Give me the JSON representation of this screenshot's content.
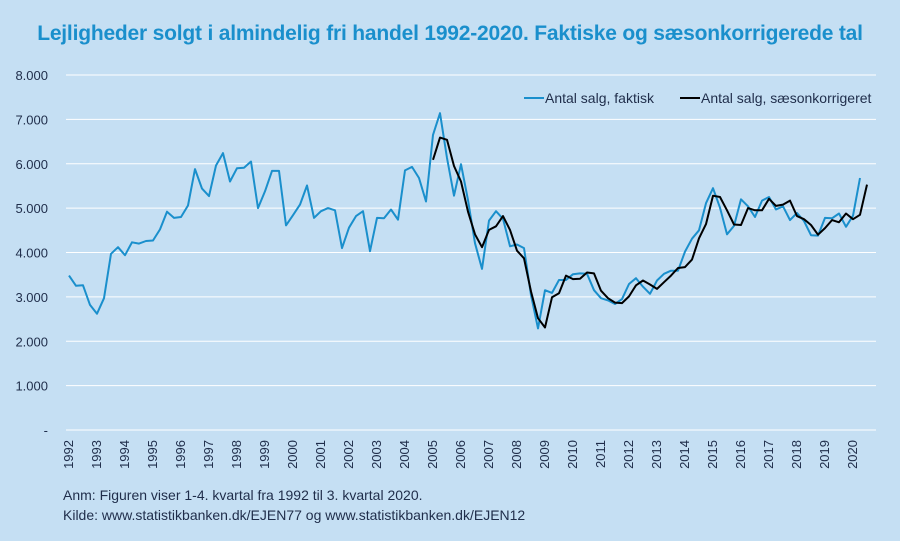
{
  "chart_data": {
    "type": "line",
    "title": "Lejligheder solgt i almindelig fri handel 1992-2020. Faktiske og sæsonkorrigerede tal",
    "xlabel": "",
    "ylabel": "",
    "ylim": [
      0,
      8000
    ],
    "yticks": [
      0,
      1000,
      2000,
      3000,
      4000,
      5000,
      6000,
      7000,
      8000
    ],
    "ytick_labels": [
      "-",
      "1.000",
      "2.000",
      "3.000",
      "4.000",
      "5.000",
      "6.000",
      "7.000",
      "8.000"
    ],
    "xtick_labels": [
      "1992",
      "1993",
      "1994",
      "1995",
      "1996",
      "1997",
      "1998",
      "1999",
      "2000",
      "2001",
      "2002",
      "2003",
      "2004",
      "2005",
      "2006",
      "2007",
      "2008",
      "2009",
      "2010",
      "2011",
      "2012",
      "2013",
      "2014",
      "2015",
      "2016",
      "2017",
      "2018",
      "2019",
      "2020"
    ],
    "x_start": "1992 Q1",
    "x_end": "2020 Q3",
    "grid": true,
    "legend_position": "top-right",
    "colors": {
      "faktisk": "#1a8fcc",
      "saeson": "#000000",
      "grid": "#ffffff",
      "background": "#c5dff3"
    },
    "series": [
      {
        "name": "Antal salg, faktisk",
        "values": [
          3480,
          3250,
          3260,
          2820,
          2620,
          2970,
          3970,
          4120,
          3940,
          4230,
          4200,
          4260,
          4270,
          4520,
          4920,
          4780,
          4800,
          5060,
          5880,
          5440,
          5270,
          5960,
          6240,
          5600,
          5900,
          5910,
          6050,
          5000,
          5380,
          5840,
          5840,
          4610,
          4840,
          5080,
          5510,
          4780,
          4930,
          5000,
          4950,
          4100,
          4560,
          4820,
          4930,
          4030,
          4780,
          4770,
          4970,
          4740,
          5850,
          5930,
          5680,
          5150,
          6650,
          7140,
          6130,
          5280,
          5990,
          5180,
          4210,
          3630,
          4720,
          4930,
          4760,
          4140,
          4180,
          4100,
          3040,
          2290,
          3150,
          3090,
          3380,
          3380,
          3510,
          3530,
          3520,
          3150,
          2970,
          2920,
          2840,
          2950,
          3290,
          3420,
          3230,
          3070,
          3370,
          3520,
          3590,
          3590,
          4020,
          4310,
          4500,
          5110,
          5450,
          5010,
          4410,
          4600,
          5200,
          5040,
          4800,
          5170,
          5250,
          4970,
          5040,
          4730,
          4890,
          4710,
          4390,
          4380,
          4780,
          4770,
          4880,
          4580,
          4830,
          5680
        ]
      },
      {
        "name": "Antal salg, sæsonkorrigeret",
        "start": "2005 Q1",
        "values": [
          6090,
          6590,
          6540,
          5950,
          5600,
          4920,
          4410,
          4120,
          4510,
          4590,
          4820,
          4510,
          4040,
          3870,
          3120,
          2520,
          2310,
          2990,
          3080,
          3480,
          3400,
          3410,
          3550,
          3530,
          3140,
          2970,
          2870,
          2860,
          3010,
          3260,
          3370,
          3280,
          3180,
          3330,
          3480,
          3650,
          3670,
          3840,
          4320,
          4640,
          5280,
          5250,
          4950,
          4630,
          4620,
          5000,
          4950,
          4950,
          5210,
          5050,
          5080,
          5170,
          4820,
          4750,
          4620,
          4400,
          4550,
          4730,
          4680,
          4880,
          4750,
          4850,
          5530
        ]
      }
    ]
  },
  "notes": {
    "line1": "Anm: Figuren viser 1-4. kvartal fra 1992 til 3. kvartal 2020.",
    "line2": "Kilde: www.statistikbanken.dk/EJEN77 og www.statistikbanken.dk/EJEN12"
  }
}
